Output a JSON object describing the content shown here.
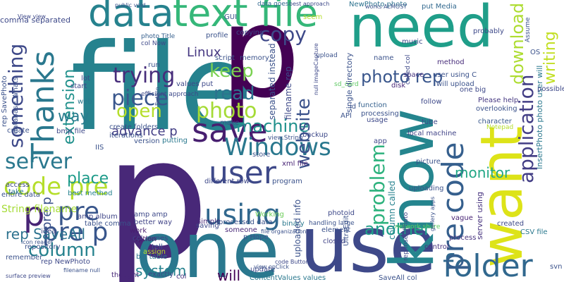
{
  "title": "Word cloud",
  "words": [
    {
      "text": "file",
      "color": "#26828e",
      "vertical": false
    },
    {
      "text": "p",
      "color": "#482878",
      "vertical": false
    },
    {
      "text": "one",
      "color": "#2a788e",
      "vertical": false
    },
    {
      "text": "use",
      "color": "#3e4989",
      "vertical": false
    },
    {
      "text": "p",
      "color": "#440154",
      "vertical": false
    },
    {
      "text": "need",
      "color": "#1f9e89",
      "vertical": false
    },
    {
      "text": "text file",
      "color": "#35b779",
      "vertical": false
    },
    {
      "text": "data",
      "color": "#26828e",
      "vertical": false
    },
    {
      "text": "know",
      "color": "#25858e",
      "vertical": true
    },
    {
      "text": "want",
      "color": "#dde318",
      "vertical": true
    },
    {
      "text": "user",
      "color": "#3e4989",
      "vertical": false
    },
    {
      "text": "save",
      "color": "#481f70",
      "vertical": false
    },
    {
      "text": "Thanks",
      "color": "#2a788e",
      "vertical": true
    },
    {
      "text": "folder",
      "color": "#31688e",
      "vertical": false
    },
    {
      "text": "pre code",
      "color": "#355f8d",
      "vertical": true
    },
    {
      "text": "using",
      "color": "#31688e",
      "vertical": false
    },
    {
      "text": "pre",
      "color": "#39568c",
      "vertical": false
    },
    {
      "text": "code pre",
      "color": "#b5de2b",
      "vertical": false
    },
    {
      "text": "pre p",
      "color": "#39568c",
      "vertical": false
    },
    {
      "text": "Windows",
      "color": "#2a788e",
      "vertical": false
    },
    {
      "text": "piece",
      "color": "#39568c",
      "vertical": false
    },
    {
      "text": "copy",
      "color": "#3e4989",
      "vertical": false
    },
    {
      "text": "trying",
      "color": "#472d7b",
      "vertical": false
    },
    {
      "text": "photo",
      "color": "#a5db36",
      "vertical": false
    },
    {
      "text": "server",
      "color": "#2a788e",
      "vertical": false
    },
    {
      "text": "machine",
      "color": "#21918c",
      "vertical": false
    },
    {
      "text": "column",
      "color": "#26828e",
      "vertical": false
    },
    {
      "text": "application",
      "color": "#433e85",
      "vertical": true
    },
    {
      "text": "open",
      "color": "#b5de2b",
      "vertical": false
    },
    {
      "text": "read",
      "color": "#2c728e",
      "vertical": false
    },
    {
      "text": "keep",
      "color": "#7ad151",
      "vertical": false
    },
    {
      "text": "something",
      "color": "#3e4989",
      "vertical": true
    },
    {
      "text": "problem",
      "color": "#2db27d",
      "vertical": true
    },
    {
      "text": "another",
      "color": "#1f9e89",
      "vertical": false
    },
    {
      "text": "website",
      "color": "#3b528b",
      "vertical": true
    },
    {
      "text": "photo rep",
      "color": "#39568c",
      "vertical": false
    },
    {
      "text": "download",
      "color": "#addc30",
      "vertical": true
    },
    {
      "text": "writing",
      "color": "#c2df23",
      "vertical": true
    },
    {
      "text": "extension",
      "color": "#21918c",
      "vertical": true
    },
    {
      "text": "way",
      "color": "#287c8e",
      "vertical": false
    },
    {
      "text": "monitor",
      "color": "#22a785",
      "vertical": false
    },
    {
      "text": "place",
      "color": "#1e9b8a",
      "vertical": false
    },
    {
      "text": "system",
      "color": "#26828e",
      "vertical": false
    },
    {
      "text": "rep SaveAll",
      "color": "#2c728e",
      "vertical": false
    },
    {
      "text": "will",
      "color": "#440154",
      "vertical": false
    },
    {
      "text": "advance p",
      "color": "#433e85",
      "vertical": false
    },
    {
      "text": "Linux",
      "color": "#453781",
      "vertical": false
    },
    {
      "text": "pre p",
      "color": "#3b528b",
      "vertical": true
    },
    {
      "text": "p",
      "color": "#482475",
      "vertical": false
    },
    {
      "text": "comma separated",
      "color": "#3e4989",
      "vertical": false
    },
    {
      "text": "String filename",
      "color": "#a5db36",
      "vertical": false
    },
    {
      "text": "data goes",
      "color": "#31688e",
      "vertical": false
    },
    {
      "text": "photo Title",
      "color": "#355f8d",
      "vertical": false
    },
    {
      "text": "col Now",
      "color": "#3e4989",
      "vertical": false
    },
    {
      "text": "profile",
      "color": "#3b528b",
      "vertical": false
    },
    {
      "text": "NewPhoto photo",
      "color": "#2c728e",
      "vertical": false
    },
    {
      "text": "put Media",
      "color": "#31688e",
      "vertical": false
    },
    {
      "text": "method",
      "color": "#472c7a",
      "vertical": false
    },
    {
      "text": "upload",
      "color": "#3b528b",
      "vertical": false
    },
    {
      "text": "space",
      "color": "#46337f",
      "vertical": false
    },
    {
      "text": "disk",
      "color": "#482878",
      "vertical": false
    },
    {
      "text": "one big",
      "color": "#3e4989",
      "vertical": false
    },
    {
      "text": "Please help",
      "color": "#453781",
      "vertical": false
    },
    {
      "text": "character",
      "color": "#38588c",
      "vertical": false
    },
    {
      "text": "Notepad",
      "color": "#b5de2b",
      "vertical": false
    },
    {
      "text": "processing",
      "color": "#3b528b",
      "vertical": false
    },
    {
      "text": "function",
      "color": "#34608d",
      "vertical": false
    },
    {
      "text": "local machine",
      "color": "#414487",
      "vertical": false
    },
    {
      "text": "xml file",
      "color": "#482475",
      "vertical": false
    },
    {
      "text": "uploading",
      "color": "#3b528b",
      "vertical": false
    },
    {
      "text": "vague",
      "color": "#482475",
      "vertical": false
    },
    {
      "text": "process",
      "color": "#46327e",
      "vertical": false
    },
    {
      "text": "created",
      "color": "#3e4989",
      "vertical": false
    },
    {
      "text": "CSV file",
      "color": "#2a788e",
      "vertical": false
    },
    {
      "text": "control",
      "color": "#46337f",
      "vertical": false
    },
    {
      "text": "svn",
      "color": "#3b528b",
      "vertical": false
    },
    {
      "text": "entire data",
      "color": "#3b528b",
      "vertical": false
    },
    {
      "text": "access",
      "color": "#3e4989",
      "vertical": false
    },
    {
      "text": "take",
      "color": "#2a788e",
      "vertical": false
    },
    {
      "text": "best method",
      "color": "#26828e",
      "vertical": false
    },
    {
      "text": "amp amp",
      "color": "#3e4989",
      "vertical": false
    },
    {
      "text": "better way",
      "color": "#414487",
      "vertical": false
    },
    {
      "text": "work",
      "color": "#481f70",
      "vertical": false
    },
    {
      "text": "option",
      "color": "#471365",
      "vertical": false
    },
    {
      "text": "assign",
      "color": "#b5de2b",
      "vertical": false
    },
    {
      "text": "col comes",
      "color": "#404688",
      "vertical": false
    },
    {
      "text": "tell",
      "color": "#3b528b",
      "vertical": false
    },
    {
      "text": "big table",
      "color": "#2c728e",
      "vertical": false
    },
    {
      "text": "exactly",
      "color": "#3e4989",
      "vertical": false
    },
    {
      "text": "col",
      "color": "#46337f",
      "vertical": false
    },
    {
      "text": "update",
      "color": "#3e4989",
      "vertical": false
    },
    {
      "text": "ContentValues values",
      "color": "#2a788e",
      "vertical": false
    },
    {
      "text": "SaveAll col",
      "color": "#3b528b",
      "vertical": false
    },
    {
      "text": "thought",
      "color": "#482878",
      "vertical": false
    },
    {
      "text": "amp album",
      "color": "#404688",
      "vertical": false
    },
    {
      "text": "table comma",
      "color": "#3b528b",
      "vertical": false
    },
    {
      "text": "idea",
      "color": "#3e4989",
      "vertical": false
    },
    {
      "text": "repository",
      "color": "#3b528b",
      "vertical": false
    },
    {
      "text": "rep NewPhoto",
      "color": "#3e4989",
      "vertical": false
    },
    {
      "text": "remember",
      "color": "#3b528b",
      "vertical": false
    },
    {
      "text": "simple",
      "color": "#482878",
      "vertical": false
    },
    {
      "text": "processed data",
      "color": "#3b528b",
      "vertical": false
    },
    {
      "text": "binary",
      "color": "#2a788e",
      "vertical": false
    },
    {
      "text": "p Hope",
      "color": "#3b528b",
      "vertical": false
    },
    {
      "text": "someone",
      "color": "#482878",
      "vertical": false
    },
    {
      "text": "saving",
      "color": "#3e4989",
      "vertical": false
    },
    {
      "text": "Working",
      "color": "#6ccd5a",
      "vertical": false
    },
    {
      "text": "closed",
      "color": "#414487",
      "vertical": false
    },
    {
      "text": "element",
      "color": "#3b528b",
      "vertical": false
    },
    {
      "text": "uploaded info",
      "color": "#3b528b",
      "vertical": true
    },
    {
      "text": "column called",
      "color": "#26828e",
      "vertical": true
    },
    {
      "text": "server using",
      "color": "#46327e",
      "vertical": true
    },
    {
      "text": "InsertPhoto photo user will",
      "color": "#2a788e",
      "vertical": true
    },
    {
      "text": "different row",
      "color": "#3e4989",
      "vertical": false
    },
    {
      "text": "make",
      "color": "#3b528b",
      "vertical": false
    },
    {
      "text": "iterations",
      "color": "#3b528b",
      "vertical": false
    },
    {
      "text": "create folders",
      "color": "#3b528b",
      "vertical": false
    },
    {
      "text": "bmp file",
      "color": "#3e4989",
      "vertical": false
    },
    {
      "text": "create",
      "color": "#3b528b",
      "vertical": false
    },
    {
      "text": "putting",
      "color": "#2a788e",
      "vertical": false
    },
    {
      "text": "version",
      "color": "#3b528b",
      "vertical": false
    },
    {
      "text": "IIS",
      "color": "#3b528b",
      "vertical": false
    },
    {
      "text": "values put",
      "color": "#3e4989",
      "vertical": false
    },
    {
      "text": "lot",
      "color": "#3e4989",
      "vertical": false
    },
    {
      "text": "start",
      "color": "#3e4989",
      "vertical": false
    },
    {
      "text": "web",
      "color": "#2a788e",
      "vertical": false
    },
    {
      "text": "run",
      "color": "#3b528b",
      "vertical": false
    },
    {
      "text": "copying",
      "color": "#3e4989",
      "vertical": false
    },
    {
      "text": "script",
      "color": "#3b528b",
      "vertical": false
    },
    {
      "text": "memory",
      "color": "#3b528b",
      "vertical": false
    },
    {
      "text": "music",
      "color": "#3e4989",
      "vertical": false
    },
    {
      "text": "name",
      "color": "#3b528b",
      "vertical": false
    },
    {
      "text": "separated instead",
      "color": "#3b528b",
      "vertical": true
    },
    {
      "text": "filename rep",
      "color": "#3e4989",
      "vertical": true
    },
    {
      "text": "single directory",
      "color": "#3b528b",
      "vertical": true
    },
    {
      "text": "sd_card",
      "color": "#5ec962",
      "vertical": false
    },
    {
      "text": "API",
      "color": "#3b528b",
      "vertical": false
    },
    {
      "text": "id",
      "color": "#3b528b",
      "vertical": false
    },
    {
      "text": "usage",
      "color": "#3e4989",
      "vertical": false
    },
    {
      "text": "follow",
      "color": "#3e4989",
      "vertical": false
    },
    {
      "text": "tube",
      "color": "#3e4989",
      "vertical": false
    },
    {
      "text": "picture",
      "color": "#3b528b",
      "vertical": false
    },
    {
      "text": "app",
      "color": "#3e4989",
      "vertical": false
    },
    {
      "text": "store",
      "color": "#3b528b",
      "vertical": false
    },
    {
      "text": "backup",
      "color": "#3e4989",
      "vertical": false
    },
    {
      "text": "program",
      "color": "#3b528b",
      "vertical": false
    },
    {
      "text": "UltraEdit",
      "color": "#3b528b",
      "vertical": true
    },
    {
      "text": "photoid",
      "color": "#3e4989",
      "vertical": false
    },
    {
      "text": "possible p",
      "color": "#3e4989",
      "vertical": false
    },
    {
      "text": "will upload",
      "color": "#3b528b",
      "vertical": false
    },
    {
      "text": "user using C",
      "color": "#3b528b",
      "vertical": false
    },
    {
      "text": "called col",
      "color": "#3e4989",
      "vertical": true
    },
    {
      "text": "OS",
      "color": "#3b528b",
      "vertical": false
    },
    {
      "text": "GUI",
      "color": "#3b528b",
      "vertical": false
    },
    {
      "text": "probably",
      "color": "#3e4989",
      "vertical": false
    },
    {
      "text": "Assume",
      "color": "#3b528b",
      "vertical": true
    },
    {
      "text": "overlooking",
      "color": "#3b528b",
      "vertical": false
    },
    {
      "text": "rep SavePhoto",
      "color": "#3b528b",
      "vertical": true
    },
    {
      "text": "database Whats",
      "color": "#3b528b",
      "vertical": true
    },
    {
      "text": "network share",
      "color": "#5ec962",
      "vertical": false
    },
    {
      "text": "handling large",
      "color": "#3b528b",
      "vertical": false
    },
    {
      "text": "rep InsertPhoto",
      "color": "#3e4989",
      "vertical": true
    },
    {
      "text": "view.String",
      "color": "#3b528b",
      "vertical": false
    },
    {
      "text": "efficient approach",
      "color": "#3e4989",
      "vertical": false
    },
    {
      "text": "public void",
      "color": "#3b528b",
      "vertical": false
    },
    {
      "text": "works ALMOST",
      "color": "#3b528b",
      "vertical": false
    },
    {
      "text": "best approach",
      "color": "#3e4989",
      "vertical": false
    },
    {
      "text": "file organization",
      "color": "#3b528b",
      "vertical": false
    },
    {
      "text": "Button",
      "color": "#3b528b",
      "vertical": false
    },
    {
      "text": "View view",
      "color": "#3e4989",
      "vertical": false
    },
    {
      "text": "filename null",
      "color": "#3b528b",
      "vertical": false
    },
    {
      "text": "surface preview",
      "color": "#3e4989",
      "vertical": false
    },
    {
      "text": "view onClick",
      "color": "#3b528b",
      "vertical": false
    },
    {
      "text": "code Button",
      "color": "#3e4989",
      "vertical": false
    },
    {
      "text": "seem",
      "color": "#b5de2b",
      "vertical": false
    },
    {
      "text": "icon reader",
      "color": "#3b528b",
      "vertical": false
    },
    {
      "text": "null imageCapture",
      "color": "#3e4989",
      "vertical": true
    },
    {
      "text": "gallery apps",
      "color": "#3b528b",
      "vertical": true
    }
  ]
}
